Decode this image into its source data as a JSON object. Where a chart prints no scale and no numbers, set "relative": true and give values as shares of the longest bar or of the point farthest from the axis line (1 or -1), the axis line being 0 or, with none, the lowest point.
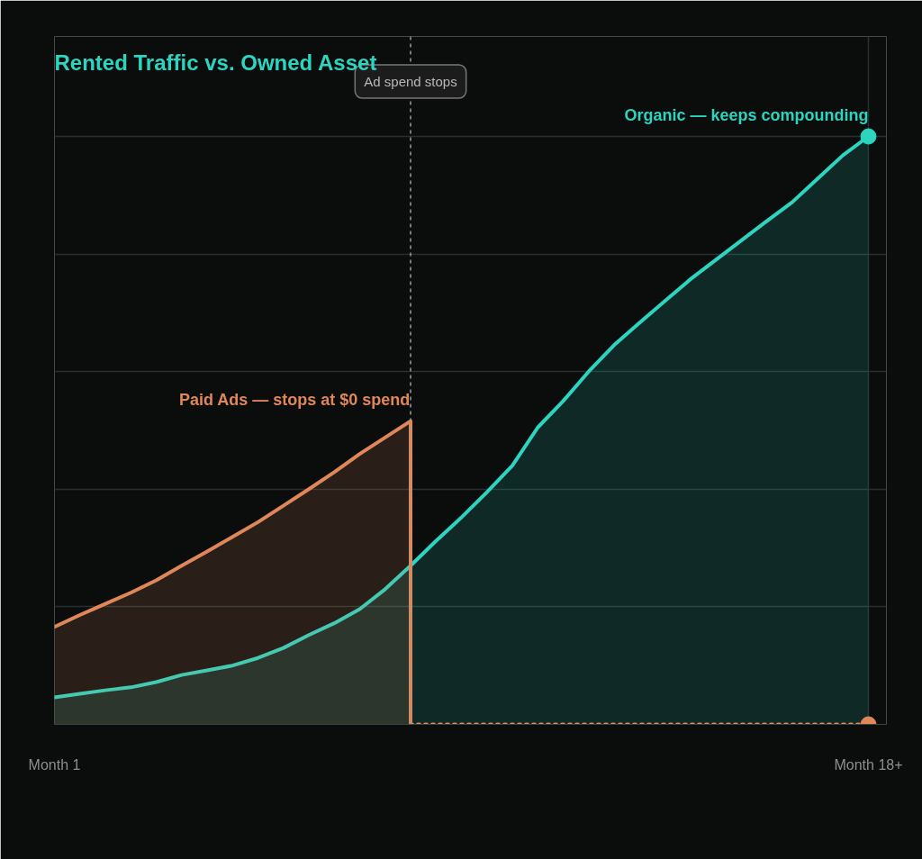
{
  "chart_data": {
    "type": "area",
    "title": "Rented Traffic vs. Owned Asset",
    "relative": true,
    "grid": true,
    "legend": false,
    "annotations": [
      "Ad spend stops"
    ],
    "categories": [
      "Month 1",
      null,
      null,
      null,
      null,
      null,
      null,
      null,
      null,
      null,
      null,
      null,
      null,
      null,
      null,
      null,
      null,
      null,
      null,
      null,
      null,
      null,
      null,
      null,
      null,
      null,
      null,
      null,
      null,
      null,
      null,
      null,
      "Month 18+"
    ],
    "series": [
      {
        "name": "Organic — keeps compounding",
        "color": "#2dd4bf",
        "values": [
          0.046,
          0.052,
          0.058,
          0.063,
          0.072,
          0.084,
          0.092,
          0.1,
          0.113,
          0.13,
          0.152,
          0.172,
          0.196,
          0.23,
          0.27,
          0.312,
          0.352,
          0.395,
          0.44,
          0.505,
          0.55,
          0.6,
          0.645,
          0.683,
          0.72,
          0.757,
          0.79,
          0.823,
          0.856,
          0.888,
          0.928,
          0.968,
          1.0
        ]
      },
      {
        "name": "Paid Ads — stops at $0 spend",
        "color": "#e0875a",
        "values": [
          0.166,
          0.186,
          0.205,
          0.224,
          0.245,
          0.27,
          0.294,
          0.319,
          0.344,
          0.372,
          0.4,
          0.429,
          0.46,
          0.488,
          0.516,
          null,
          null,
          null,
          null,
          null,
          null,
          null,
          null,
          null,
          null,
          null,
          null,
          null,
          null,
          null,
          null,
          null,
          null
        ]
      },
      {
        "type": "line",
        "color": "#e0875a",
        "line_style": "dotted",
        "values": [
          null,
          null,
          null,
          null,
          null,
          null,
          null,
          null,
          null,
          null,
          null,
          null,
          null,
          null,
          0,
          0,
          0,
          0,
          0,
          0,
          0,
          0,
          0,
          0,
          0,
          0,
          0,
          0,
          0,
          0,
          0,
          0,
          0
        ]
      },
      {
        "type": "scatter",
        "color": "#2dd4bf",
        "values": [
          null,
          null,
          null,
          null,
          null,
          null,
          null,
          null,
          null,
          null,
          null,
          null,
          null,
          null,
          null,
          null,
          null,
          null,
          null,
          null,
          null,
          null,
          null,
          null,
          null,
          null,
          null,
          null,
          null,
          null,
          null,
          null,
          1.0
        ]
      },
      {
        "type": "scatter",
        "color": "#e0875a",
        "values": [
          null,
          null,
          null,
          null,
          null,
          null,
          null,
          null,
          null,
          null,
          null,
          null,
          null,
          null,
          null,
          null,
          null,
          null,
          null,
          null,
          null,
          null,
          null,
          null,
          null,
          null,
          null,
          null,
          null,
          null,
          null,
          null,
          0
        ]
      }
    ]
  }
}
